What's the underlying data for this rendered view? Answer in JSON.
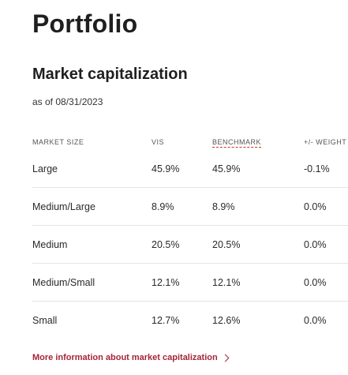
{
  "page": {
    "title": "Portfolio"
  },
  "section": {
    "title": "Market capitalization",
    "as_of": "as of 08/31/2023"
  },
  "table": {
    "headers": {
      "market_size": "MARKET SIZE",
      "vis": "VIS",
      "benchmark": "BENCHMARK",
      "weight": "+/- WEIGHT"
    },
    "rows": [
      {
        "market_size": "Large",
        "vis": "45.9%",
        "benchmark": "45.9%",
        "weight": "-0.1%"
      },
      {
        "market_size": "Medium/Large",
        "vis": "8.9%",
        "benchmark": "8.9%",
        "weight": "0.0%"
      },
      {
        "market_size": "Medium",
        "vis": "20.5%",
        "benchmark": "20.5%",
        "weight": "0.0%"
      },
      {
        "market_size": "Medium/Small",
        "vis": "12.1%",
        "benchmark": "12.1%",
        "weight": "0.0%"
      },
      {
        "market_size": "Small",
        "vis": "12.7%",
        "benchmark": "12.6%",
        "weight": "0.0%"
      }
    ]
  },
  "link": {
    "label": "More information about market capitalization",
    "icon": "chevron-right-icon"
  },
  "colors": {
    "link": "#a5243a",
    "divider": "#e4e4e4"
  }
}
